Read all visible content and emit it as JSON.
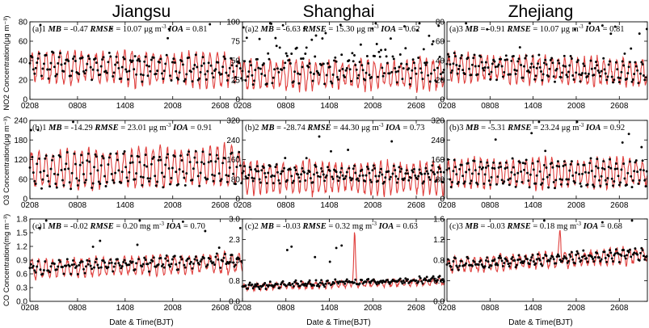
{
  "figure": {
    "columns": [
      "Jiangsu",
      "Shanghai",
      "Zhejiang"
    ],
    "xlabel": "Date & Time(BJT)",
    "ylabels": [
      "NO2 Concentration(μg m⁻³)",
      "O3 Concentration(μg m⁻³)",
      "CO Concentration(mg m⁻³)"
    ],
    "xticks": [
      "0208",
      "0808",
      "1408",
      "2008",
      "2608"
    ],
    "colors": {
      "model": "#e0403e",
      "obs": "#000000",
      "axis": "#000000"
    }
  },
  "chart_data": [
    {
      "type": "line",
      "panel": "(a)1",
      "row": 0,
      "col": 0,
      "region": "Jiangsu",
      "variable": "NO2",
      "unit_prefix": "μg m",
      "unit_exp": "-3",
      "stats": {
        "MB": "-0.47",
        "RMSE": "10.07",
        "IOA": "0.81"
      },
      "ylim": [
        0,
        80
      ],
      "yticks": [
        "0",
        "20",
        "40",
        "60",
        "80"
      ],
      "model": {
        "base": 32,
        "amp": 18,
        "trend": 5,
        "freq": 1.0,
        "noise": 4,
        "seed": 11
      },
      "obs": {
        "base": 33,
        "amp": 10,
        "trend": 6,
        "noise": 5,
        "scatter": 0.05,
        "seed": 12
      },
      "series": [
        {
          "name": "model",
          "style": "line"
        },
        {
          "name": "obs",
          "style": "dots"
        }
      ]
    },
    {
      "type": "line",
      "panel": "(a)2",
      "row": 0,
      "col": 1,
      "region": "Shanghai",
      "variable": "NO2",
      "unit_prefix": "μg m",
      "unit_exp": "-3",
      "stats": {
        "MB": "-6.63",
        "RMSE": "15.30",
        "IOA": "0.62"
      },
      "ylim": [
        0,
        100
      ],
      "yticks": [
        "0",
        "25",
        "50",
        "75",
        "100"
      ],
      "model": {
        "base": 32,
        "amp": 20,
        "trend": 0,
        "freq": 1.0,
        "noise": 5,
        "seed": 21
      },
      "obs": {
        "base": 38,
        "amp": 12,
        "trend": -4,
        "noise": 8,
        "scatter": 0.18,
        "seed": 22
      },
      "series": [
        {
          "name": "model",
          "style": "line"
        },
        {
          "name": "obs",
          "style": "dots"
        }
      ]
    },
    {
      "type": "line",
      "panel": "(a)3",
      "row": 0,
      "col": 2,
      "region": "Zhejiang",
      "variable": "NO2",
      "unit_prefix": "μg m",
      "unit_exp": "-3",
      "stats": {
        "MB": "-0.91",
        "RMSE": "10.07",
        "IOA": "0.81"
      },
      "ylim": [
        0,
        80
      ],
      "yticks": [
        "0",
        "20",
        "40",
        "60",
        "80"
      ],
      "model": {
        "base": 30,
        "amp": 15,
        "trend": 6,
        "freq": 1.0,
        "noise": 4,
        "seed": 31
      },
      "obs": {
        "base": 32,
        "amp": 9,
        "trend": 7,
        "noise": 5,
        "scatter": 0.06,
        "seed": 32
      },
      "series": [
        {
          "name": "model",
          "style": "line"
        },
        {
          "name": "obs",
          "style": "dots"
        }
      ]
    },
    {
      "type": "line",
      "panel": "(b)1",
      "row": 1,
      "col": 0,
      "region": "Jiangsu",
      "variable": "O3",
      "unit_prefix": "μg m",
      "unit_exp": "-3",
      "stats": {
        "MB": "-14.29",
        "RMSE": "23.01",
        "IOA": "0.91"
      },
      "ylim": [
        0,
        240
      ],
      "yticks": [
        "0",
        "60",
        "120",
        "180",
        "240"
      ],
      "model": {
        "base": 95,
        "amp": 65,
        "trend": -15,
        "freq": 1.0,
        "noise": 10,
        "seed": 41
      },
      "obs": {
        "base": 90,
        "amp": 45,
        "trend": -10,
        "noise": 14,
        "scatter": 0.04,
        "seed": 42
      },
      "series": [
        {
          "name": "model",
          "style": "line"
        },
        {
          "name": "obs",
          "style": "dots"
        }
      ]
    },
    {
      "type": "line",
      "panel": "(b)2",
      "row": 1,
      "col": 1,
      "region": "Shanghai",
      "variable": "O3",
      "unit_prefix": "μg m",
      "unit_exp": "-3",
      "stats": {
        "MB": "-28.74",
        "RMSE": "44.30",
        "IOA": "0.73"
      },
      "ylim": [
        0,
        320
      ],
      "yticks": [
        "0",
        "80",
        "160",
        "240",
        "320"
      ],
      "model": {
        "base": 85,
        "amp": 70,
        "trend": 0,
        "freq": 1.0,
        "noise": 14,
        "seed": 51
      },
      "obs": {
        "base": 100,
        "amp": 25,
        "trend": 5,
        "noise": 16,
        "scatter": 0.05,
        "seed": 52
      },
      "series": [
        {
          "name": "model",
          "style": "line"
        },
        {
          "name": "obs",
          "style": "dots"
        }
      ]
    },
    {
      "type": "line",
      "panel": "(b)3",
      "row": 1,
      "col": 2,
      "region": "Zhejiang",
      "variable": "O3",
      "unit_prefix": "μg m",
      "unit_exp": "-3",
      "stats": {
        "MB": "-5.31",
        "RMSE": "23.24",
        "IOA": "0.92"
      },
      "ylim": [
        0,
        320
      ],
      "yticks": [
        "0",
        "80",
        "160",
        "240",
        "320"
      ],
      "model": {
        "base": 105,
        "amp": 65,
        "trend": -5,
        "freq": 1.0,
        "noise": 12,
        "seed": 61
      },
      "obs": {
        "base": 105,
        "amp": 50,
        "trend": 0,
        "noise": 14,
        "scatter": 0.04,
        "seed": 62
      },
      "series": [
        {
          "name": "model",
          "style": "line"
        },
        {
          "name": "obs",
          "style": "dots"
        }
      ]
    },
    {
      "type": "line",
      "panel": "(c)1",
      "row": 2,
      "col": 0,
      "region": "Jiangsu",
      "variable": "CO",
      "unit_prefix": "mg m",
      "unit_exp": "-3",
      "stats": {
        "MB": "-0.02",
        "RMSE": "0.20",
        "IOA": "0.70"
      },
      "ylim": [
        0,
        1.8
      ],
      "yticks": [
        "0.0",
        "0.3",
        "0.6",
        "0.9",
        "1.2",
        "1.5",
        "1.8"
      ],
      "model": {
        "base": 0.78,
        "amp": 0.22,
        "trend": -0.15,
        "freq": 1.0,
        "noise": 0.06,
        "seed": 71
      },
      "obs": {
        "base": 0.82,
        "amp": 0.1,
        "trend": -0.18,
        "noise": 0.08,
        "scatter": 0.04,
        "seed": 72
      },
      "series": [
        {
          "name": "model",
          "style": "line"
        },
        {
          "name": "obs",
          "style": "dots"
        }
      ]
    },
    {
      "type": "line",
      "panel": "(c)2",
      "row": 2,
      "col": 1,
      "region": "Shanghai",
      "variable": "CO",
      "unit_prefix": "mg m",
      "unit_exp": "-3",
      "stats": {
        "MB": "-0.03",
        "RMSE": "0.32",
        "IOA": "0.63"
      },
      "ylim": [
        0,
        3.0
      ],
      "yticks": [
        "0.0",
        "0.8",
        "1.5",
        "2.3",
        "3.0"
      ],
      "model": {
        "base": 0.62,
        "amp": 0.12,
        "trend": -0.2,
        "freq": 1.0,
        "noise": 0.06,
        "seed": 81,
        "spikeAt": 0.555,
        "spikeH": 1.85
      },
      "obs": {
        "base": 0.68,
        "amp": 0.06,
        "trend": -0.25,
        "noise": 0.08,
        "scatter": 0.03,
        "seed": 82
      },
      "series": [
        {
          "name": "model",
          "style": "line"
        },
        {
          "name": "obs",
          "style": "dots"
        }
      ]
    },
    {
      "type": "line",
      "panel": "(c)3",
      "row": 2,
      "col": 2,
      "region": "Zhejiang",
      "variable": "CO",
      "unit_prefix": "mg m",
      "unit_exp": "-3",
      "stats": {
        "MB": "-0.03",
        "RMSE": "0.18",
        "IOA": "0.68"
      },
      "ylim": [
        0,
        1.6
      ],
      "yticks": [
        "0.0",
        "0.4",
        "0.8",
        "1.2",
        "1.6"
      ],
      "model": {
        "base": 0.8,
        "amp": 0.16,
        "trend": -0.2,
        "freq": 1.0,
        "noise": 0.05,
        "seed": 91,
        "spikeAt": 0.565,
        "spikeH": 0.55
      },
      "obs": {
        "base": 0.82,
        "amp": 0.08,
        "trend": -0.22,
        "noise": 0.06,
        "scatter": 0.03,
        "seed": 92
      },
      "series": [
        {
          "name": "model",
          "style": "line"
        },
        {
          "name": "obs",
          "style": "dots"
        }
      ]
    }
  ]
}
